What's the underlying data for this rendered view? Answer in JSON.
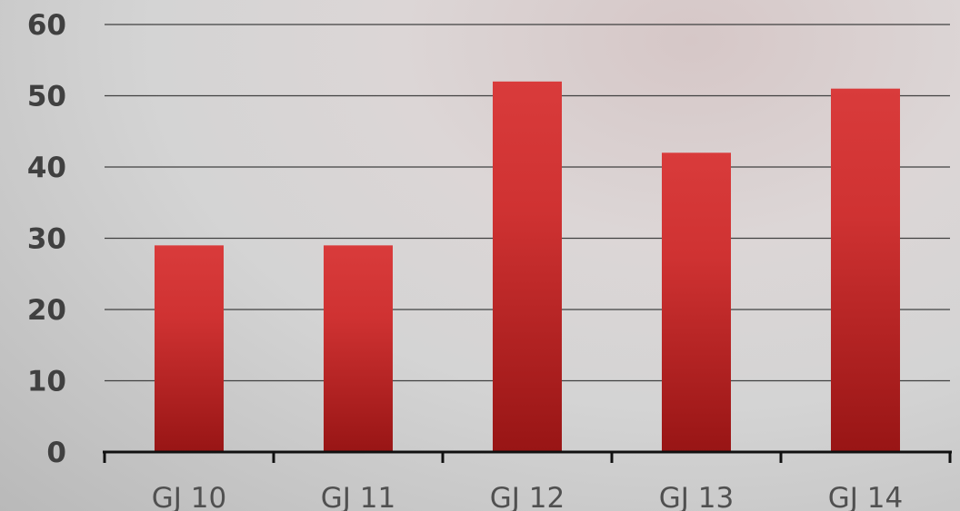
{
  "chart_data": {
    "type": "bar",
    "categories": [
      "GJ 10",
      "GJ 11",
      "GJ 12",
      "GJ 13",
      "GJ 14"
    ],
    "values": [
      29,
      29,
      52,
      42,
      51
    ],
    "ylim": [
      0,
      60
    ],
    "yticks": [
      "0",
      "10",
      "20",
      "30",
      "40",
      "50",
      "60"
    ],
    "grid": true,
    "legend": "none",
    "colors": {
      "bar_top": "#d93b3b",
      "bar_bottom": "#981515",
      "grid": "#404040",
      "axis": "#111111"
    }
  }
}
